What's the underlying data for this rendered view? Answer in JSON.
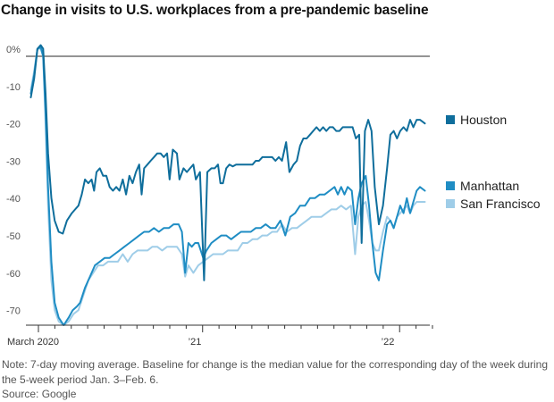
{
  "chart_data": {
    "type": "line",
    "title": "Change in visits to U.S. workplaces from a pre-pandemic baseline",
    "y_tick_labels": [
      "0%",
      "-10",
      "-20",
      "-30",
      "-40",
      "-50",
      "-60",
      "-70"
    ],
    "y_tick_values": [
      0,
      -10,
      -20,
      -30,
      -40,
      -50,
      -60,
      -70
    ],
    "ylim": [
      -72,
      4
    ],
    "x_tick_labels": [
      "March 2020",
      "’21",
      "’22"
    ],
    "x_tick_months": [
      0,
      10,
      22
    ],
    "xlim": [
      0,
      24.6
    ],
    "x_unit": "months since Feb. 15, 2020",
    "grid": false,
    "legend_placement": "right, at line ends",
    "series": [
      {
        "name": "Houston",
        "color": "#0f6e9c",
        "points": [
          [
            0.3,
            -11
          ],
          [
            0.5,
            -6
          ],
          [
            0.7,
            2
          ],
          [
            0.9,
            3
          ],
          [
            1.05,
            2
          ],
          [
            1.2,
            -10
          ],
          [
            1.35,
            -26
          ],
          [
            1.55,
            -38
          ],
          [
            1.75,
            -44
          ],
          [
            2.0,
            -47
          ],
          [
            2.25,
            -47.5
          ],
          [
            2.5,
            -44
          ],
          [
            2.8,
            -42
          ],
          [
            3.0,
            -41
          ],
          [
            3.2,
            -40
          ],
          [
            3.4,
            -37
          ],
          [
            3.6,
            -33
          ],
          [
            3.8,
            -34
          ],
          [
            4.0,
            -33
          ],
          [
            4.15,
            -36
          ],
          [
            4.3,
            -31
          ],
          [
            4.5,
            -30
          ],
          [
            4.7,
            -32
          ],
          [
            4.9,
            -32
          ],
          [
            5.1,
            -35
          ],
          [
            5.3,
            -36
          ],
          [
            5.5,
            -35
          ],
          [
            5.7,
            -36
          ],
          [
            5.9,
            -33
          ],
          [
            6.1,
            -37
          ],
          [
            6.3,
            -32
          ],
          [
            6.5,
            -34
          ],
          [
            6.7,
            -31
          ],
          [
            6.9,
            -29
          ],
          [
            7.05,
            -37
          ],
          [
            7.2,
            -30
          ],
          [
            7.4,
            -29
          ],
          [
            7.6,
            -28
          ],
          [
            7.8,
            -27
          ],
          [
            8.0,
            -26
          ],
          [
            8.2,
            -26
          ],
          [
            8.4,
            -27
          ],
          [
            8.6,
            -26
          ],
          [
            8.75,
            -33
          ],
          [
            8.95,
            -25
          ],
          [
            9.2,
            -26
          ],
          [
            9.35,
            -33
          ],
          [
            9.6,
            -30
          ],
          [
            9.8,
            -31
          ],
          [
            10.0,
            -30
          ],
          [
            10.2,
            -29
          ],
          [
            10.35,
            -33
          ],
          [
            10.6,
            -31
          ],
          [
            10.85,
            -60
          ],
          [
            11.05,
            -31
          ],
          [
            11.3,
            -30
          ],
          [
            11.5,
            -30
          ],
          [
            11.7,
            -29
          ],
          [
            11.85,
            -34
          ],
          [
            12.0,
            -34
          ],
          [
            12.2,
            -30
          ],
          [
            12.4,
            -29
          ],
          [
            12.6,
            -29.5
          ],
          [
            12.8,
            -29
          ],
          [
            13.0,
            -29
          ],
          [
            13.2,
            -29
          ],
          [
            13.4,
            -29
          ],
          [
            13.6,
            -29
          ],
          [
            13.8,
            -29
          ],
          [
            14.0,
            -28
          ],
          [
            14.2,
            -28
          ],
          [
            14.4,
            -27
          ],
          [
            14.6,
            -27
          ],
          [
            14.8,
            -27
          ],
          [
            15.0,
            -27
          ],
          [
            15.2,
            -28
          ],
          [
            15.4,
            -27
          ],
          [
            15.6,
            -28
          ],
          [
            15.85,
            -23
          ],
          [
            16.05,
            -31
          ],
          [
            16.3,
            -29
          ],
          [
            16.5,
            -28
          ],
          [
            16.7,
            -24
          ],
          [
            16.9,
            -22
          ],
          [
            17.1,
            -22
          ],
          [
            17.3,
            -21
          ],
          [
            17.5,
            -20
          ],
          [
            17.7,
            -19
          ],
          [
            17.9,
            -20
          ],
          [
            18.1,
            -19
          ],
          [
            18.3,
            -20
          ],
          [
            18.5,
            -19
          ],
          [
            18.7,
            -19
          ],
          [
            18.9,
            -20
          ],
          [
            19.1,
            -20
          ],
          [
            19.3,
            -19
          ],
          [
            19.5,
            -19
          ],
          [
            19.7,
            -19
          ],
          [
            19.9,
            -19
          ],
          [
            20.1,
            -22
          ],
          [
            20.3,
            -21
          ],
          [
            20.45,
            -50
          ],
          [
            20.65,
            -20
          ],
          [
            20.85,
            -17
          ],
          [
            21.05,
            -20
          ],
          [
            21.25,
            -35
          ],
          [
            21.5,
            -45
          ],
          [
            21.75,
            -40
          ],
          [
            22.0,
            -30
          ],
          [
            22.2,
            -21
          ],
          [
            22.4,
            -20
          ],
          [
            22.6,
            -22
          ],
          [
            22.8,
            -20
          ],
          [
            23.0,
            -19
          ],
          [
            23.2,
            -20
          ],
          [
            23.4,
            -17
          ],
          [
            23.6,
            -19
          ],
          [
            23.8,
            -17
          ],
          [
            24.0,
            -17
          ],
          [
            24.3,
            -18
          ]
        ]
      },
      {
        "name": "Manhattan",
        "color": "#1f8dc4",
        "points": [
          [
            0.3,
            -10
          ],
          [
            0.5,
            -5
          ],
          [
            0.7,
            2
          ],
          [
            0.9,
            2.5
          ],
          [
            1.05,
            0
          ],
          [
            1.2,
            -15
          ],
          [
            1.35,
            -35
          ],
          [
            1.55,
            -55
          ],
          [
            1.75,
            -66
          ],
          [
            2.0,
            -70
          ],
          [
            2.3,
            -72
          ],
          [
            2.6,
            -70
          ],
          [
            2.85,
            -68
          ],
          [
            3.1,
            -67
          ],
          [
            3.3,
            -66
          ],
          [
            3.6,
            -62
          ],
          [
            3.9,
            -59
          ],
          [
            4.2,
            -56
          ],
          [
            4.5,
            -55
          ],
          [
            4.8,
            -54
          ],
          [
            5.1,
            -54
          ],
          [
            5.4,
            -53
          ],
          [
            5.7,
            -52
          ],
          [
            6.0,
            -51
          ],
          [
            6.3,
            -50
          ],
          [
            6.6,
            -49
          ],
          [
            6.9,
            -48
          ],
          [
            7.2,
            -47
          ],
          [
            7.5,
            -47
          ],
          [
            7.8,
            -46
          ],
          [
            8.1,
            -47
          ],
          [
            8.4,
            -46
          ],
          [
            8.7,
            -46
          ],
          [
            9.0,
            -45
          ],
          [
            9.3,
            -45
          ],
          [
            9.5,
            -47
          ],
          [
            9.7,
            -58
          ],
          [
            9.9,
            -50
          ],
          [
            10.1,
            -51
          ],
          [
            10.3,
            -50
          ],
          [
            10.5,
            -50
          ],
          [
            10.8,
            -54
          ],
          [
            11.0,
            -52
          ],
          [
            11.3,
            -50
          ],
          [
            11.6,
            -49
          ],
          [
            11.9,
            -48
          ],
          [
            12.2,
            -48
          ],
          [
            12.5,
            -49
          ],
          [
            12.8,
            -48
          ],
          [
            13.1,
            -47
          ],
          [
            13.4,
            -47
          ],
          [
            13.7,
            -47
          ],
          [
            14.0,
            -46
          ],
          [
            14.3,
            -46
          ],
          [
            14.6,
            -45
          ],
          [
            14.9,
            -46
          ],
          [
            15.2,
            -46
          ],
          [
            15.5,
            -44
          ],
          [
            15.8,
            -48
          ],
          [
            16.1,
            -43
          ],
          [
            16.4,
            -42
          ],
          [
            16.7,
            -40
          ],
          [
            17.0,
            -40
          ],
          [
            17.3,
            -38
          ],
          [
            17.6,
            -38
          ],
          [
            17.9,
            -37
          ],
          [
            18.2,
            -37
          ],
          [
            18.5,
            -36
          ],
          [
            18.8,
            -35
          ],
          [
            19.0,
            -37
          ],
          [
            19.2,
            -35
          ],
          [
            19.4,
            -37
          ],
          [
            19.6,
            -35
          ],
          [
            19.85,
            -36
          ],
          [
            20.05,
            -45
          ],
          [
            20.25,
            -38
          ],
          [
            20.45,
            -34
          ],
          [
            20.7,
            -32
          ],
          [
            20.9,
            -40
          ],
          [
            21.1,
            -50
          ],
          [
            21.3,
            -58
          ],
          [
            21.5,
            -60
          ],
          [
            21.75,
            -52
          ],
          [
            22.0,
            -45
          ],
          [
            22.2,
            -44
          ],
          [
            22.4,
            -46
          ],
          [
            22.6,
            -43
          ],
          [
            22.8,
            -40
          ],
          [
            23.0,
            -42
          ],
          [
            23.2,
            -38
          ],
          [
            23.4,
            -42
          ],
          [
            23.6,
            -39
          ],
          [
            23.8,
            -36
          ],
          [
            24.0,
            -35
          ],
          [
            24.3,
            -36
          ]
        ]
      },
      {
        "name": "San Francisco",
        "color": "#9fcde8",
        "points": [
          [
            0.3,
            -9
          ],
          [
            0.5,
            -4
          ],
          [
            0.7,
            2
          ],
          [
            0.9,
            2
          ],
          [
            1.05,
            0
          ],
          [
            1.2,
            -18
          ],
          [
            1.35,
            -40
          ],
          [
            1.55,
            -60
          ],
          [
            1.75,
            -68
          ],
          [
            2.0,
            -71
          ],
          [
            2.3,
            -72
          ],
          [
            2.6,
            -71
          ],
          [
            2.9,
            -69
          ],
          [
            3.2,
            -68
          ],
          [
            3.5,
            -64
          ],
          [
            3.8,
            -60
          ],
          [
            4.1,
            -58
          ],
          [
            4.4,
            -56
          ],
          [
            4.7,
            -56
          ],
          [
            5.0,
            -55
          ],
          [
            5.3,
            -55
          ],
          [
            5.6,
            -55
          ],
          [
            5.9,
            -53
          ],
          [
            6.2,
            -55
          ],
          [
            6.5,
            -53
          ],
          [
            6.8,
            -52
          ],
          [
            7.1,
            -52
          ],
          [
            7.4,
            -52
          ],
          [
            7.7,
            -51
          ],
          [
            8.0,
            -51
          ],
          [
            8.3,
            -52
          ],
          [
            8.6,
            -51
          ],
          [
            8.9,
            -51
          ],
          [
            9.2,
            -51
          ],
          [
            9.5,
            -53
          ],
          [
            9.7,
            -59
          ],
          [
            9.9,
            -56
          ],
          [
            10.2,
            -58
          ],
          [
            10.5,
            -56
          ],
          [
            10.8,
            -55
          ],
          [
            11.1,
            -54
          ],
          [
            11.4,
            -53
          ],
          [
            11.7,
            -53
          ],
          [
            12.0,
            -53
          ],
          [
            12.3,
            -52
          ],
          [
            12.6,
            -52
          ],
          [
            12.9,
            -52
          ],
          [
            13.2,
            -50
          ],
          [
            13.5,
            -50
          ],
          [
            13.8,
            -49
          ],
          [
            14.1,
            -49
          ],
          [
            14.4,
            -48
          ],
          [
            14.7,
            -48
          ],
          [
            15.0,
            -47
          ],
          [
            15.3,
            -47
          ],
          [
            15.6,
            -45
          ],
          [
            15.9,
            -47
          ],
          [
            16.2,
            -46
          ],
          [
            16.5,
            -46
          ],
          [
            16.8,
            -45
          ],
          [
            17.1,
            -44
          ],
          [
            17.4,
            -43
          ],
          [
            17.7,
            -43
          ],
          [
            18.0,
            -43
          ],
          [
            18.3,
            -42
          ],
          [
            18.6,
            -41
          ],
          [
            18.9,
            -41
          ],
          [
            19.2,
            -40
          ],
          [
            19.5,
            -41
          ],
          [
            19.8,
            -40
          ],
          [
            20.05,
            -53
          ],
          [
            20.25,
            -43
          ],
          [
            20.45,
            -40
          ],
          [
            20.7,
            -39
          ],
          [
            20.9,
            -44
          ],
          [
            21.1,
            -50
          ],
          [
            21.3,
            -52
          ],
          [
            21.5,
            -52
          ],
          [
            21.75,
            -47
          ],
          [
            22.0,
            -43
          ],
          [
            22.2,
            -44
          ],
          [
            22.4,
            -46
          ],
          [
            22.6,
            -43
          ],
          [
            22.8,
            -42
          ],
          [
            23.0,
            -41
          ],
          [
            23.2,
            -40
          ],
          [
            23.4,
            -42
          ],
          [
            23.6,
            -40
          ],
          [
            23.8,
            -39
          ],
          [
            24.0,
            -39
          ],
          [
            24.3,
            -39
          ]
        ]
      }
    ],
    "note": "Note: 7-day moving average. Baseline for change is the median value for the corresponding day of the week during the 5-week period Jan. 3–Feb. 6.",
    "source": "Source: Google"
  }
}
